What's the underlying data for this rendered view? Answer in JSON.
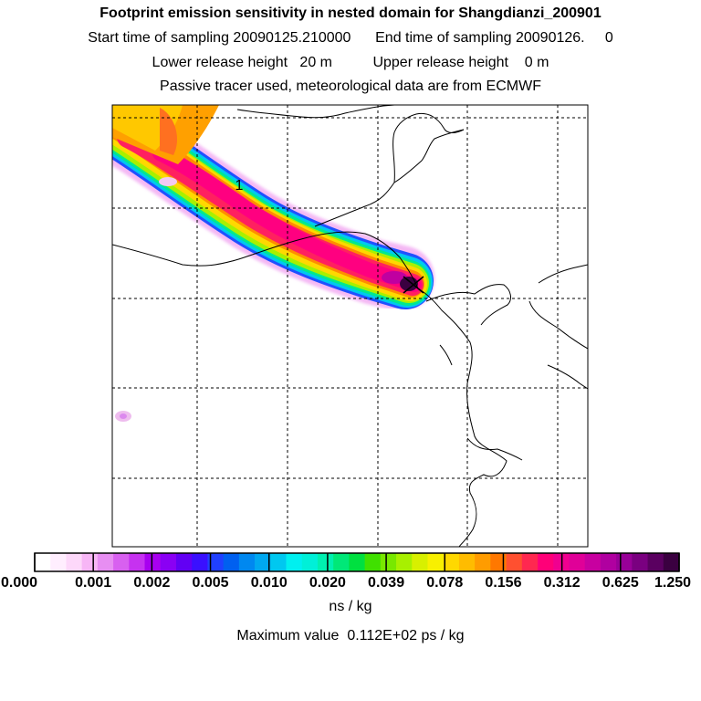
{
  "header": {
    "title": "Footprint emission sensitivity in nested domain for Shangdianzi_200901",
    "sampling_line": "Start time of sampling 20090125.210000      End time of sampling 20090126.     0",
    "release_line": "Lower release height   20 m          Upper release height    0 m",
    "tracer_line": "Passive tracer used, meteorological data are from ECMWF"
  },
  "map": {
    "peak_label": "1",
    "receptor_marker": "x-marker-icon"
  },
  "legend": {
    "ticks": [
      "0.000",
      "0.001",
      "0.002",
      "0.005",
      "0.010",
      "0.020",
      "0.039",
      "0.078",
      "0.156",
      "0.312",
      "0.625",
      "1.250"
    ],
    "units": "ns / kg",
    "colors": [
      "#ffffff",
      "#ffeefe",
      "#fdd8fa",
      "#f7b6f6",
      "#e78ef2",
      "#d860f0",
      "#c632f0",
      "#a800f0",
      "#8a00f4",
      "#6200f4",
      "#3a10ff",
      "#2040ff",
      "#0060f0",
      "#0088f0",
      "#00a8f0",
      "#00c8f0",
      "#00f0f0",
      "#00f0d8",
      "#00f0b0",
      "#00e878",
      "#00e040",
      "#40e000",
      "#78e800",
      "#a8f000",
      "#d8f000",
      "#f8f000",
      "#ffd800",
      "#ffbc00",
      "#ff9c00",
      "#ff7800",
      "#ff5030",
      "#ff2850",
      "#ff0078",
      "#f00090",
      "#e00098",
      "#c800a0",
      "#b000a0",
      "#980098",
      "#7a0080",
      "#5a0060",
      "#3a0040"
    ]
  },
  "footer": {
    "max_line": "Maximum value  0.112E+02 ps / kg"
  }
}
